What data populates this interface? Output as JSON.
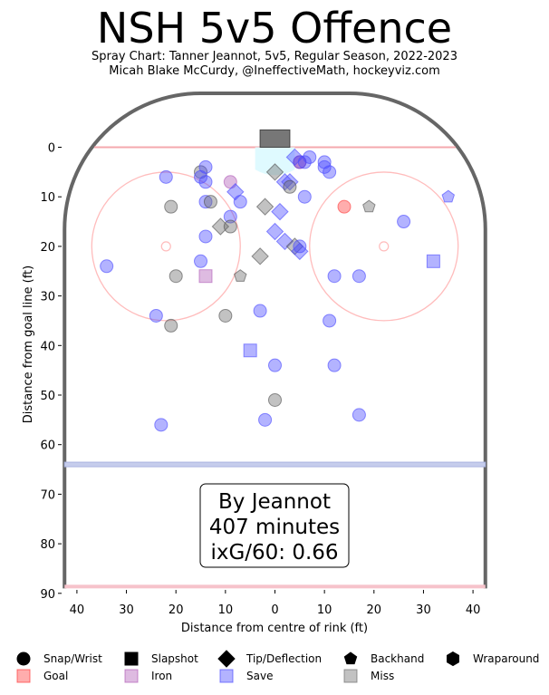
{
  "title": "NSH 5v5 Offence",
  "subtitle_1": "Spray Chart: Tanner Jeannot, 5v5, Regular Season, 2022-2023",
  "subtitle_2": "Micah Blake McCurdy, @IneffectiveMath, hockeyviz.com",
  "box": {
    "line1": "By Jeannot",
    "line2": "407 minutes",
    "line3": "ixG/60: 0.66"
  },
  "legend": {
    "shapes": [
      {
        "label": "Snap/Wrist",
        "icon": "circle"
      },
      {
        "label": "Slapshot",
        "icon": "square"
      },
      {
        "label": "Tip/Deflection",
        "icon": "diamond"
      },
      {
        "label": "Backhand",
        "icon": "pentagon"
      },
      {
        "label": "Wraparound",
        "icon": "hexagon"
      }
    ],
    "outcomes": [
      {
        "label": "Goal",
        "color": "#ff3b3b"
      },
      {
        "label": "Iron",
        "color": "#b05cb8"
      },
      {
        "label": "Save",
        "color": "#4a4aff"
      },
      {
        "label": "Miss",
        "color": "#6e6e6e"
      }
    ]
  },
  "chart_data": {
    "type": "scatter",
    "xlabel": "Distance from centre of rink (ft)",
    "ylabel": "Distance from goal line (ft)",
    "xlim": [
      -43,
      43
    ],
    "ylim": [
      90,
      -6
    ],
    "x_ticks": [
      -40,
      -30,
      -20,
      -10,
      0,
      10,
      20,
      30,
      40
    ],
    "x_tick_labels": [
      "40",
      "30",
      "20",
      "10",
      "0",
      "10",
      "20",
      "30",
      "40"
    ],
    "y_ticks": [
      0,
      10,
      20,
      30,
      40,
      50,
      60,
      70,
      80,
      90
    ],
    "points": [
      {
        "x": 5,
        "y": 3,
        "shot": "circle",
        "result": "goal"
      },
      {
        "x": 5,
        "y": 3,
        "shot": "circle",
        "result": "save"
      },
      {
        "x": 14,
        "y": 12,
        "shot": "circle",
        "result": "goal"
      },
      {
        "x": -9,
        "y": 7,
        "shot": "circle",
        "result": "iron"
      },
      {
        "x": -14,
        "y": 26,
        "shot": "square",
        "result": "iron"
      },
      {
        "x": -15,
        "y": 5,
        "shot": "circle",
        "result": "miss"
      },
      {
        "x": -15,
        "y": 6,
        "shot": "circle",
        "result": "save"
      },
      {
        "x": -14,
        "y": 4,
        "shot": "circle",
        "result": "save"
      },
      {
        "x": -14,
        "y": 7,
        "shot": "circle",
        "result": "save"
      },
      {
        "x": -22,
        "y": 6,
        "shot": "circle",
        "result": "save"
      },
      {
        "x": -21,
        "y": 12,
        "shot": "circle",
        "result": "miss"
      },
      {
        "x": -14,
        "y": 11,
        "shot": "circle",
        "result": "save"
      },
      {
        "x": -13,
        "y": 11,
        "shot": "circle",
        "result": "miss"
      },
      {
        "x": -8,
        "y": 9,
        "shot": "diamond",
        "result": "save"
      },
      {
        "x": -7,
        "y": 11,
        "shot": "circle",
        "result": "save"
      },
      {
        "x": -11,
        "y": 16,
        "shot": "diamond",
        "result": "miss"
      },
      {
        "x": -9,
        "y": 14,
        "shot": "circle",
        "result": "save"
      },
      {
        "x": -9,
        "y": 16,
        "shot": "circle",
        "result": "miss"
      },
      {
        "x": -14,
        "y": 18,
        "shot": "circle",
        "result": "save"
      },
      {
        "x": -15,
        "y": 23,
        "shot": "circle",
        "result": "save"
      },
      {
        "x": -20,
        "y": 26,
        "shot": "circle",
        "result": "miss"
      },
      {
        "x": -7,
        "y": 26,
        "shot": "pentagon",
        "result": "miss"
      },
      {
        "x": -34,
        "y": 24,
        "shot": "circle",
        "result": "save"
      },
      {
        "x": -24,
        "y": 34,
        "shot": "circle",
        "result": "save"
      },
      {
        "x": -21,
        "y": 36,
        "shot": "circle",
        "result": "miss"
      },
      {
        "x": -10,
        "y": 34,
        "shot": "circle",
        "result": "miss"
      },
      {
        "x": -3,
        "y": 33,
        "shot": "circle",
        "result": "save"
      },
      {
        "x": -5,
        "y": 41,
        "shot": "square",
        "result": "save"
      },
      {
        "x": 0,
        "y": 44,
        "shot": "circle",
        "result": "save"
      },
      {
        "x": 0,
        "y": 51,
        "shot": "circle",
        "result": "miss"
      },
      {
        "x": -2,
        "y": 55,
        "shot": "circle",
        "result": "save"
      },
      {
        "x": -23,
        "y": 56,
        "shot": "circle",
        "result": "save"
      },
      {
        "x": 0,
        "y": 5,
        "shot": "diamond",
        "result": "miss"
      },
      {
        "x": 2,
        "y": 7,
        "shot": "diamond",
        "result": "save"
      },
      {
        "x": 3,
        "y": 7,
        "shot": "diamond",
        "result": "save"
      },
      {
        "x": 3,
        "y": 8,
        "shot": "circle",
        "result": "miss"
      },
      {
        "x": 4,
        "y": 2,
        "shot": "diamond",
        "result": "save"
      },
      {
        "x": 6,
        "y": 3,
        "shot": "circle",
        "result": "save"
      },
      {
        "x": 7,
        "y": 2,
        "shot": "circle",
        "result": "save"
      },
      {
        "x": 10,
        "y": 3,
        "shot": "circle",
        "result": "save"
      },
      {
        "x": 10,
        "y": 4,
        "shot": "circle",
        "result": "save"
      },
      {
        "x": 11,
        "y": 5,
        "shot": "circle",
        "result": "save"
      },
      {
        "x": 6,
        "y": 10,
        "shot": "circle",
        "result": "save"
      },
      {
        "x": -2,
        "y": 12,
        "shot": "diamond",
        "result": "miss"
      },
      {
        "x": 1,
        "y": 13,
        "shot": "diamond",
        "result": "save"
      },
      {
        "x": 0,
        "y": 17,
        "shot": "diamond",
        "result": "save"
      },
      {
        "x": 2,
        "y": 19,
        "shot": "diamond",
        "result": "save"
      },
      {
        "x": 4,
        "y": 20,
        "shot": "diamond",
        "result": "miss"
      },
      {
        "x": 5,
        "y": 20,
        "shot": "circle",
        "result": "save"
      },
      {
        "x": 5,
        "y": 21,
        "shot": "diamond",
        "result": "save"
      },
      {
        "x": -3,
        "y": 22,
        "shot": "diamond",
        "result": "miss"
      },
      {
        "x": 12,
        "y": 26,
        "shot": "circle",
        "result": "save"
      },
      {
        "x": 17,
        "y": 26,
        "shot": "circle",
        "result": "save"
      },
      {
        "x": 11,
        "y": 35,
        "shot": "circle",
        "result": "save"
      },
      {
        "x": 12,
        "y": 44,
        "shot": "circle",
        "result": "save"
      },
      {
        "x": 17,
        "y": 54,
        "shot": "circle",
        "result": "save"
      },
      {
        "x": 19,
        "y": 12,
        "shot": "pentagon",
        "result": "miss"
      },
      {
        "x": 26,
        "y": 15,
        "shot": "circle",
        "result": "save"
      },
      {
        "x": 32,
        "y": 23,
        "shot": "square",
        "result": "save"
      },
      {
        "x": 35,
        "y": 10,
        "shot": "pentagon",
        "result": "save"
      }
    ]
  }
}
